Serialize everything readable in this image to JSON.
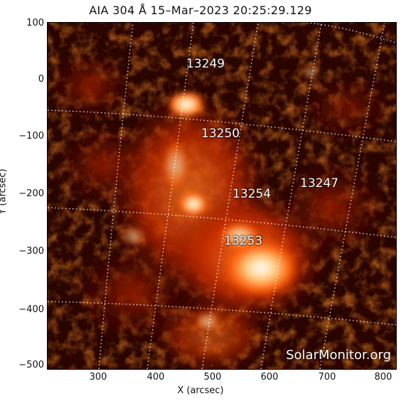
{
  "title": "AIA 304 Å 15–Mar–2023 20:25:29.129",
  "xlabel": "X (arcsec)",
  "ylabel": "Y (arcsec)",
  "x_ticks": [
    "300",
    "400",
    "500",
    "600",
    "700",
    "800"
  ],
  "y_ticks": [
    "100",
    "0",
    "−100",
    "−200",
    "−300",
    "−400",
    "−500"
  ],
  "regions": [
    "13249",
    "13250",
    "13254",
    "13247",
    "13253"
  ],
  "watermark": "SolarMonitor.org",
  "colors": {
    "background": "#1a0300",
    "bright": "#ffffff",
    "mid": "#ff5a00",
    "dark": "#6a0f00"
  }
}
